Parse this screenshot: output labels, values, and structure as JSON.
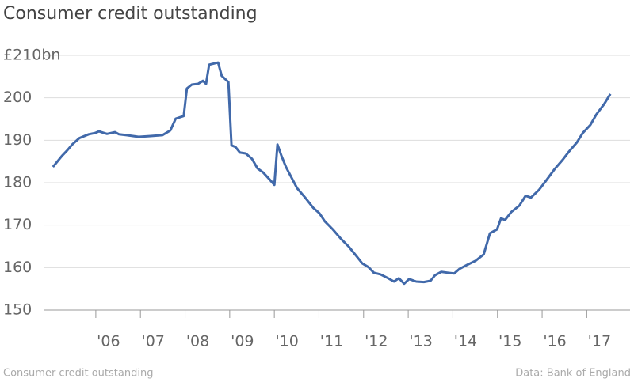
{
  "chart_data": {
    "type": "line",
    "title": "Consumer credit outstanding",
    "caption": "Consumer credit outstanding",
    "source": "Data: Bank of England",
    "x": [
      2005.04,
      2005.24,
      2005.36,
      2005.48,
      2005.63,
      2005.84,
      2005.98,
      2006.07,
      2006.25,
      2006.43,
      2006.52,
      2006.69,
      2006.96,
      2007.23,
      2007.49,
      2007.67,
      2007.79,
      2007.97,
      2008.04,
      2008.15,
      2008.29,
      2008.4,
      2008.47,
      2008.54,
      2008.74,
      2008.82,
      2008.97,
      2009.04,
      2009.13,
      2009.23,
      2009.36,
      2009.5,
      2009.62,
      2009.75,
      2009.89,
      2010.0,
      2010.07,
      2010.16,
      2010.26,
      2010.39,
      2010.51,
      2010.69,
      2010.87,
      2011.01,
      2011.13,
      2011.31,
      2011.49,
      2011.67,
      2011.84,
      2011.97,
      2012.11,
      2012.23,
      2012.38,
      2012.55,
      2012.68,
      2012.79,
      2012.91,
      2013.02,
      2013.18,
      2013.35,
      2013.5,
      2013.6,
      2013.74,
      2013.89,
      2014.03,
      2014.15,
      2014.33,
      2014.51,
      2014.69,
      2014.83,
      2014.99,
      2015.08,
      2015.17,
      2015.31,
      2015.49,
      2015.63,
      2015.75,
      2015.93,
      2016.11,
      2016.28,
      2016.46,
      2016.6,
      2016.78,
      2016.91,
      2017.08,
      2017.21,
      2017.39,
      2017.53
    ],
    "series": [
      {
        "name": "Consumer credit outstanding",
        "color": "#4169aa",
        "values": [
          183.7,
          186.3,
          187.6,
          189.1,
          190.5,
          191.4,
          191.7,
          192.1,
          191.5,
          191.9,
          191.4,
          191.2,
          190.8,
          191.0,
          191.2,
          192.3,
          195.1,
          195.7,
          202.2,
          203.1,
          203.3,
          204.0,
          203.3,
          207.8,
          208.3,
          205.2,
          203.7,
          188.8,
          188.4,
          187.1,
          186.9,
          185.6,
          183.4,
          182.4,
          180.8,
          179.5,
          189.0,
          186.3,
          183.7,
          181.1,
          178.7,
          176.5,
          174.1,
          172.8,
          170.9,
          169.0,
          166.8,
          164.9,
          162.7,
          161.0,
          160.1,
          158.8,
          158.4,
          157.5,
          156.7,
          157.5,
          156.2,
          157.3,
          156.7,
          156.6,
          156.9,
          158.2,
          159.0,
          158.8,
          158.6,
          159.7,
          160.7,
          161.6,
          163.1,
          168.1,
          169.0,
          171.6,
          171.2,
          173.1,
          174.6,
          176.9,
          176.5,
          178.3,
          180.8,
          183.2,
          185.4,
          187.3,
          189.5,
          191.7,
          193.6,
          196.0,
          198.5,
          200.9
        ]
      }
    ],
    "xlim": [
      2004.83,
      2017.97
    ],
    "xticks": [
      {
        "value": 2006,
        "label": "'06"
      },
      {
        "value": 2007,
        "label": "'07"
      },
      {
        "value": 2008,
        "label": "'08"
      },
      {
        "value": 2009,
        "label": "'09"
      },
      {
        "value": 2010,
        "label": "'10"
      },
      {
        "value": 2011,
        "label": "'11"
      },
      {
        "value": 2012,
        "label": "'12"
      },
      {
        "value": 2013,
        "label": "'13"
      },
      {
        "value": 2014,
        "label": "'14"
      },
      {
        "value": 2015,
        "label": "'15"
      },
      {
        "value": 2016,
        "label": "'16"
      },
      {
        "value": 2017,
        "label": "'17"
      }
    ],
    "ylim": [
      150,
      210
    ],
    "yticks": [
      150,
      160,
      170,
      180,
      190,
      200,
      {
        "value": 210,
        "label": "£210bn"
      }
    ],
    "grid": true
  }
}
